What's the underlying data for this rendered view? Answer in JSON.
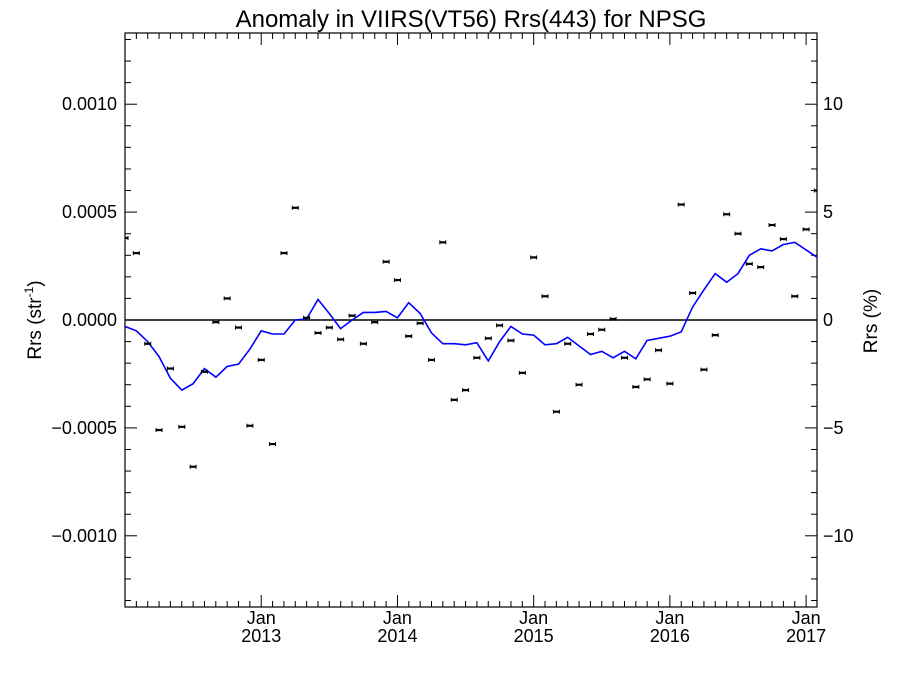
{
  "chart_data": {
    "type": "scatter",
    "title": "Anomaly in VIIRS(VT56) Rrs(443) for NPSG",
    "ylabel_left": {
      "text": "Rrs (str",
      "sup": "-1",
      "close": ")"
    },
    "ylabel_right": "Rrs (%)",
    "ylim_left": [
      -0.00133,
      0.00133
    ],
    "ylim_right": [
      -13.3,
      13.3
    ],
    "xlim": [
      2012.0,
      2017.08
    ],
    "y_ticks_left": [
      {
        "value": 0.001,
        "label": "0.0010"
      },
      {
        "value": 0.0005,
        "label": "0.0005"
      },
      {
        "value": 0.0,
        "label": "0.0000"
      },
      {
        "value": -0.0005,
        "label": "−0.0005"
      },
      {
        "value": -0.001,
        "label": "−0.0010"
      }
    ],
    "y_ticks_right": [
      {
        "value": 10,
        "label": "10"
      },
      {
        "value": 5,
        "label": "5"
      },
      {
        "value": 0,
        "label": "0"
      },
      {
        "value": -5,
        "label": "−5"
      },
      {
        "value": -10,
        "label": "−10"
      }
    ],
    "x_ticks": [
      {
        "value": 2013.0,
        "month": "Jan",
        "year": "2013"
      },
      {
        "value": 2014.0,
        "month": "Jan",
        "year": "2014"
      },
      {
        "value": 2015.0,
        "month": "Jan",
        "year": "2015"
      },
      {
        "value": 2016.0,
        "month": "Jan",
        "year": "2016"
      },
      {
        "value": 2017.0,
        "month": "Jan",
        "year": "2017"
      }
    ],
    "zero_line": true,
    "colors": {
      "points": "#000000",
      "line": "#0000ff",
      "axes": "#000000"
    },
    "series": [
      {
        "type": "scatter_errorbar",
        "points": [
          {
            "x": 2012.0,
            "y": 0.00038
          },
          {
            "x": 2012.083,
            "y": 0.00031
          },
          {
            "x": 2012.167,
            "y": -0.00011
          },
          {
            "x": 2012.25,
            "y": -0.00051
          },
          {
            "x": 2012.333,
            "y": -0.000225
          },
          {
            "x": 2012.417,
            "y": -0.000495
          },
          {
            "x": 2012.5,
            "y": -0.00068
          },
          {
            "x": 2012.583,
            "y": -0.00024
          },
          {
            "x": 2012.667,
            "y": -1e-05
          },
          {
            "x": 2012.75,
            "y": 0.0001
          },
          {
            "x": 2012.833,
            "y": -3.5e-05
          },
          {
            "x": 2012.917,
            "y": -0.00049
          },
          {
            "x": 2013.0,
            "y": -0.000185
          },
          {
            "x": 2013.083,
            "y": -0.000575
          },
          {
            "x": 2013.167,
            "y": 0.00031
          },
          {
            "x": 2013.25,
            "y": 0.00052
          },
          {
            "x": 2013.333,
            "y": 1e-05
          },
          {
            "x": 2013.417,
            "y": -6e-05
          },
          {
            "x": 2013.5,
            "y": -3.5e-05
          },
          {
            "x": 2013.583,
            "y": -9e-05
          },
          {
            "x": 2013.667,
            "y": 2e-05
          },
          {
            "x": 2013.75,
            "y": -0.00011
          },
          {
            "x": 2013.833,
            "y": -1e-05
          },
          {
            "x": 2013.917,
            "y": 0.00027
          },
          {
            "x": 2014.0,
            "y": 0.000185
          },
          {
            "x": 2014.083,
            "y": -7.5e-05
          },
          {
            "x": 2014.167,
            "y": -1.5e-05
          },
          {
            "x": 2014.25,
            "y": -0.000185
          },
          {
            "x": 2014.333,
            "y": 0.00036
          },
          {
            "x": 2014.417,
            "y": -0.00037
          },
          {
            "x": 2014.5,
            "y": -0.000325
          },
          {
            "x": 2014.583,
            "y": -0.000175
          },
          {
            "x": 2014.667,
            "y": -8.5e-05
          },
          {
            "x": 2014.75,
            "y": -2.5e-05
          },
          {
            "x": 2014.833,
            "y": -9.5e-05
          },
          {
            "x": 2014.917,
            "y": -0.000245
          },
          {
            "x": 2015.0,
            "y": 0.00029
          },
          {
            "x": 2015.083,
            "y": 0.00011
          },
          {
            "x": 2015.167,
            "y": -0.000425
          },
          {
            "x": 2015.25,
            "y": -0.00011
          },
          {
            "x": 2015.333,
            "y": -0.0003
          },
          {
            "x": 2015.417,
            "y": -6.5e-05
          },
          {
            "x": 2015.5,
            "y": -4.5e-05
          },
          {
            "x": 2015.583,
            "y": 5e-06
          },
          {
            "x": 2015.667,
            "y": -0.000175
          },
          {
            "x": 2015.75,
            "y": -0.00031
          },
          {
            "x": 2015.833,
            "y": -0.000275
          },
          {
            "x": 2015.917,
            "y": -0.00014
          },
          {
            "x": 2016.0,
            "y": -0.000295
          },
          {
            "x": 2016.083,
            "y": 0.000535
          },
          {
            "x": 2016.167,
            "y": 0.000125
          },
          {
            "x": 2016.25,
            "y": -0.00023
          },
          {
            "x": 2016.333,
            "y": -7e-05
          },
          {
            "x": 2016.417,
            "y": 0.00049
          },
          {
            "x": 2016.5,
            "y": 0.0004
          },
          {
            "x": 2016.583,
            "y": 0.00026
          },
          {
            "x": 2016.667,
            "y": 0.000245
          },
          {
            "x": 2016.75,
            "y": 0.00044
          },
          {
            "x": 2016.833,
            "y": 0.000375
          },
          {
            "x": 2016.917,
            "y": 0.00011
          },
          {
            "x": 2017.0,
            "y": 0.00042
          },
          {
            "x": 2017.083,
            "y": 0.0006
          }
        ]
      },
      {
        "type": "line",
        "points": [
          {
            "x": 2012.0,
            "y": -3e-05
          },
          {
            "x": 2012.083,
            "y": -5e-05
          },
          {
            "x": 2012.167,
            "y": -0.0001
          },
          {
            "x": 2012.25,
            "y": -0.00017
          },
          {
            "x": 2012.333,
            "y": -0.00027
          },
          {
            "x": 2012.417,
            "y": -0.000325
          },
          {
            "x": 2012.5,
            "y": -0.000295
          },
          {
            "x": 2012.583,
            "y": -0.000225
          },
          {
            "x": 2012.667,
            "y": -0.000265
          },
          {
            "x": 2012.75,
            "y": -0.000215
          },
          {
            "x": 2012.833,
            "y": -0.000205
          },
          {
            "x": 2012.917,
            "y": -0.000135
          },
          {
            "x": 2013.0,
            "y": -5e-05
          },
          {
            "x": 2013.083,
            "y": -6.5e-05
          },
          {
            "x": 2013.167,
            "y": -6.5e-05
          },
          {
            "x": 2013.25,
            "y": 0.0
          },
          {
            "x": 2013.333,
            "y": 5e-06
          },
          {
            "x": 2013.417,
            "y": 9.5e-05
          },
          {
            "x": 2013.5,
            "y": 3e-05
          },
          {
            "x": 2013.583,
            "y": -4e-05
          },
          {
            "x": 2013.667,
            "y": 0.0
          },
          {
            "x": 2013.75,
            "y": 3.5e-05
          },
          {
            "x": 2013.833,
            "y": 3.5e-05
          },
          {
            "x": 2013.917,
            "y": 4e-05
          },
          {
            "x": 2014.0,
            "y": 1e-05
          },
          {
            "x": 2014.083,
            "y": 8e-05
          },
          {
            "x": 2014.167,
            "y": 3e-05
          },
          {
            "x": 2014.25,
            "y": -6e-05
          },
          {
            "x": 2014.333,
            "y": -0.00011
          },
          {
            "x": 2014.417,
            "y": -0.00011
          },
          {
            "x": 2014.5,
            "y": -0.000115
          },
          {
            "x": 2014.583,
            "y": -0.000105
          },
          {
            "x": 2014.667,
            "y": -0.00019
          },
          {
            "x": 2014.75,
            "y": -0.0001
          },
          {
            "x": 2014.833,
            "y": -3e-05
          },
          {
            "x": 2014.917,
            "y": -6.5e-05
          },
          {
            "x": 2015.0,
            "y": -7e-05
          },
          {
            "x": 2015.083,
            "y": -0.000115
          },
          {
            "x": 2015.167,
            "y": -0.00011
          },
          {
            "x": 2015.25,
            "y": -8e-05
          },
          {
            "x": 2015.333,
            "y": -0.00012
          },
          {
            "x": 2015.417,
            "y": -0.00016
          },
          {
            "x": 2015.5,
            "y": -0.000145
          },
          {
            "x": 2015.583,
            "y": -0.000175
          },
          {
            "x": 2015.667,
            "y": -0.000145
          },
          {
            "x": 2015.75,
            "y": -0.00018
          },
          {
            "x": 2015.833,
            "y": -9.5e-05
          },
          {
            "x": 2015.917,
            "y": -8.5e-05
          },
          {
            "x": 2016.0,
            "y": -7.5e-05
          },
          {
            "x": 2016.083,
            "y": -5.5e-05
          },
          {
            "x": 2016.167,
            "y": 6e-05
          },
          {
            "x": 2016.25,
            "y": 0.00014
          },
          {
            "x": 2016.333,
            "y": 0.000215
          },
          {
            "x": 2016.417,
            "y": 0.000175
          },
          {
            "x": 2016.5,
            "y": 0.000215
          },
          {
            "x": 2016.583,
            "y": 0.0003
          },
          {
            "x": 2016.667,
            "y": 0.00033
          },
          {
            "x": 2016.75,
            "y": 0.00032
          },
          {
            "x": 2016.833,
            "y": 0.00035
          },
          {
            "x": 2016.917,
            "y": 0.00036
          },
          {
            "x": 2017.0,
            "y": 0.000325
          },
          {
            "x": 2017.083,
            "y": 0.00029
          }
        ]
      }
    ]
  }
}
